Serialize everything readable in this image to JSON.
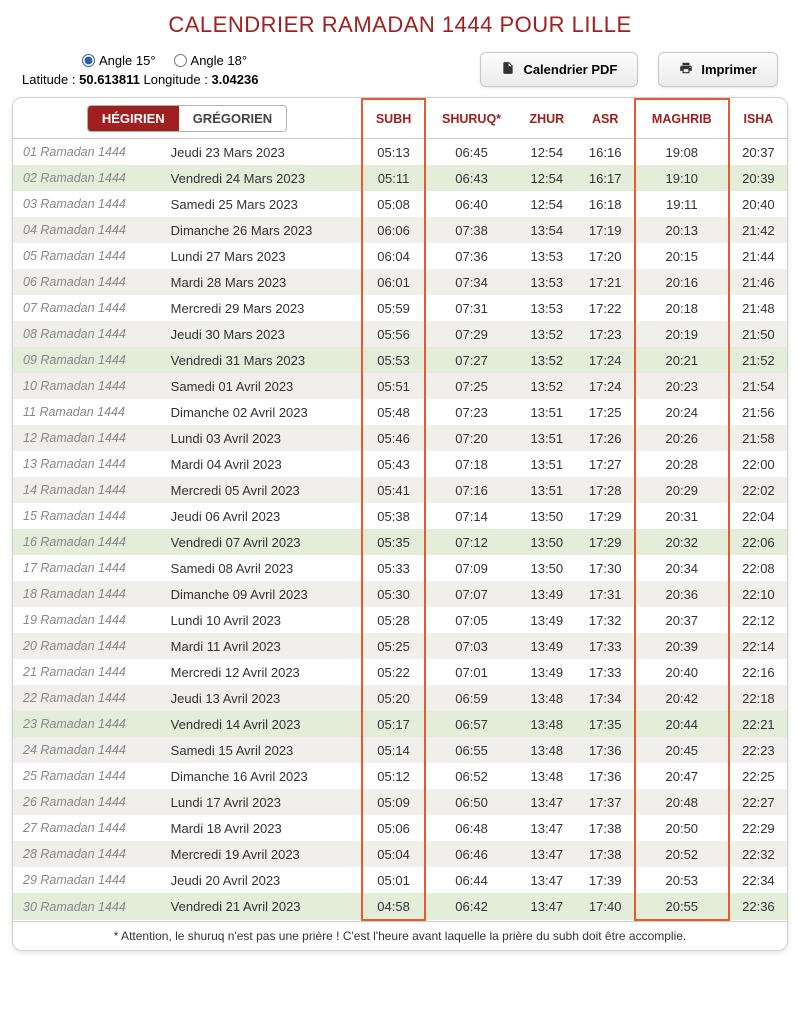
{
  "title": "CALENDRIER RAMADAN 1444 POUR LILLE",
  "angles": {
    "opt15": "Angle 15°",
    "opt18": "Angle 18°",
    "selected": "15"
  },
  "coords": {
    "lat_label": "Latitude :",
    "lat_value": "50.613811",
    "lon_label": "Longitude :",
    "lon_value": "3.04236"
  },
  "buttons": {
    "pdf": "Calendrier PDF",
    "print": "Imprimer"
  },
  "tabs": {
    "hijri": "HÉGIRIEN",
    "greg": "GRÉGORIEN"
  },
  "columns": {
    "subh": "SUBH",
    "shuruq": "SHURUQ*",
    "zhur": "ZHUR",
    "asr": "ASR",
    "maghrib": "MAGHRIB",
    "isha": "ISHA"
  },
  "highlighted_columns": [
    "subh",
    "maghrib"
  ],
  "colors": {
    "accent": "#a02020",
    "highlight_border": "#e85a2a",
    "row_even": "#f0efec",
    "row_friday": "#e4ecda",
    "row_odd": "#ffffff"
  },
  "footnote": "* Attention, le shuruq n'est pas une prière ! C'est l'heure avant laquelle la prière du subh doit être accomplie.",
  "rows": [
    {
      "hijri": "01 Ramadan 1444",
      "greg": "Jeudi 23 Mars 2023",
      "subh": "05:13",
      "shuruq": "06:45",
      "zhur": "12:54",
      "asr": "16:16",
      "maghrib": "19:08",
      "isha": "20:37",
      "friday": false
    },
    {
      "hijri": "02 Ramadan 1444",
      "greg": "Vendredi 24 Mars 2023",
      "subh": "05:11",
      "shuruq": "06:43",
      "zhur": "12:54",
      "asr": "16:17",
      "maghrib": "19:10",
      "isha": "20:39",
      "friday": true
    },
    {
      "hijri": "03 Ramadan 1444",
      "greg": "Samedi 25 Mars 2023",
      "subh": "05:08",
      "shuruq": "06:40",
      "zhur": "12:54",
      "asr": "16:18",
      "maghrib": "19:11",
      "isha": "20:40",
      "friday": false
    },
    {
      "hijri": "04 Ramadan 1444",
      "greg": "Dimanche 26 Mars 2023",
      "subh": "06:06",
      "shuruq": "07:38",
      "zhur": "13:54",
      "asr": "17:19",
      "maghrib": "20:13",
      "isha": "21:42",
      "friday": false
    },
    {
      "hijri": "05 Ramadan 1444",
      "greg": "Lundi 27 Mars 2023",
      "subh": "06:04",
      "shuruq": "07:36",
      "zhur": "13:53",
      "asr": "17:20",
      "maghrib": "20:15",
      "isha": "21:44",
      "friday": false
    },
    {
      "hijri": "06 Ramadan 1444",
      "greg": "Mardi 28 Mars 2023",
      "subh": "06:01",
      "shuruq": "07:34",
      "zhur": "13:53",
      "asr": "17:21",
      "maghrib": "20:16",
      "isha": "21:46",
      "friday": false
    },
    {
      "hijri": "07 Ramadan 1444",
      "greg": "Mercredi 29 Mars 2023",
      "subh": "05:59",
      "shuruq": "07:31",
      "zhur": "13:53",
      "asr": "17:22",
      "maghrib": "20:18",
      "isha": "21:48",
      "friday": false
    },
    {
      "hijri": "08 Ramadan 1444",
      "greg": "Jeudi 30 Mars 2023",
      "subh": "05:56",
      "shuruq": "07:29",
      "zhur": "13:52",
      "asr": "17:23",
      "maghrib": "20:19",
      "isha": "21:50",
      "friday": false
    },
    {
      "hijri": "09 Ramadan 1444",
      "greg": "Vendredi 31 Mars 2023",
      "subh": "05:53",
      "shuruq": "07:27",
      "zhur": "13:52",
      "asr": "17:24",
      "maghrib": "20:21",
      "isha": "21:52",
      "friday": true
    },
    {
      "hijri": "10 Ramadan 1444",
      "greg": "Samedi 01 Avril 2023",
      "subh": "05:51",
      "shuruq": "07:25",
      "zhur": "13:52",
      "asr": "17:24",
      "maghrib": "20:23",
      "isha": "21:54",
      "friday": false
    },
    {
      "hijri": "11 Ramadan 1444",
      "greg": "Dimanche 02 Avril 2023",
      "subh": "05:48",
      "shuruq": "07:23",
      "zhur": "13:51",
      "asr": "17:25",
      "maghrib": "20:24",
      "isha": "21:56",
      "friday": false
    },
    {
      "hijri": "12 Ramadan 1444",
      "greg": "Lundi 03 Avril 2023",
      "subh": "05:46",
      "shuruq": "07:20",
      "zhur": "13:51",
      "asr": "17:26",
      "maghrib": "20:26",
      "isha": "21:58",
      "friday": false
    },
    {
      "hijri": "13 Ramadan 1444",
      "greg": "Mardi 04 Avril 2023",
      "subh": "05:43",
      "shuruq": "07:18",
      "zhur": "13:51",
      "asr": "17:27",
      "maghrib": "20:28",
      "isha": "22:00",
      "friday": false
    },
    {
      "hijri": "14 Ramadan 1444",
      "greg": "Mercredi 05 Avril 2023",
      "subh": "05:41",
      "shuruq": "07:16",
      "zhur": "13:51",
      "asr": "17:28",
      "maghrib": "20:29",
      "isha": "22:02",
      "friday": false
    },
    {
      "hijri": "15 Ramadan 1444",
      "greg": "Jeudi 06 Avril 2023",
      "subh": "05:38",
      "shuruq": "07:14",
      "zhur": "13:50",
      "asr": "17:29",
      "maghrib": "20:31",
      "isha": "22:04",
      "friday": false
    },
    {
      "hijri": "16 Ramadan 1444",
      "greg": "Vendredi 07 Avril 2023",
      "subh": "05:35",
      "shuruq": "07:12",
      "zhur": "13:50",
      "asr": "17:29",
      "maghrib": "20:32",
      "isha": "22:06",
      "friday": true
    },
    {
      "hijri": "17 Ramadan 1444",
      "greg": "Samedi 08 Avril 2023",
      "subh": "05:33",
      "shuruq": "07:09",
      "zhur": "13:50",
      "asr": "17:30",
      "maghrib": "20:34",
      "isha": "22:08",
      "friday": false
    },
    {
      "hijri": "18 Ramadan 1444",
      "greg": "Dimanche 09 Avril 2023",
      "subh": "05:30",
      "shuruq": "07:07",
      "zhur": "13:49",
      "asr": "17:31",
      "maghrib": "20:36",
      "isha": "22:10",
      "friday": false
    },
    {
      "hijri": "19 Ramadan 1444",
      "greg": "Lundi 10 Avril 2023",
      "subh": "05:28",
      "shuruq": "07:05",
      "zhur": "13:49",
      "asr": "17:32",
      "maghrib": "20:37",
      "isha": "22:12",
      "friday": false
    },
    {
      "hijri": "20 Ramadan 1444",
      "greg": "Mardi 11 Avril 2023",
      "subh": "05:25",
      "shuruq": "07:03",
      "zhur": "13:49",
      "asr": "17:33",
      "maghrib": "20:39",
      "isha": "22:14",
      "friday": false
    },
    {
      "hijri": "21 Ramadan 1444",
      "greg": "Mercredi 12 Avril 2023",
      "subh": "05:22",
      "shuruq": "07:01",
      "zhur": "13:49",
      "asr": "17:33",
      "maghrib": "20:40",
      "isha": "22:16",
      "friday": false
    },
    {
      "hijri": "22 Ramadan 1444",
      "greg": "Jeudi 13 Avril 2023",
      "subh": "05:20",
      "shuruq": "06:59",
      "zhur": "13:48",
      "asr": "17:34",
      "maghrib": "20:42",
      "isha": "22:18",
      "friday": false
    },
    {
      "hijri": "23 Ramadan 1444",
      "greg": "Vendredi 14 Avril 2023",
      "subh": "05:17",
      "shuruq": "06:57",
      "zhur": "13:48",
      "asr": "17:35",
      "maghrib": "20:44",
      "isha": "22:21",
      "friday": true
    },
    {
      "hijri": "24 Ramadan 1444",
      "greg": "Samedi 15 Avril 2023",
      "subh": "05:14",
      "shuruq": "06:55",
      "zhur": "13:48",
      "asr": "17:36",
      "maghrib": "20:45",
      "isha": "22:23",
      "friday": false
    },
    {
      "hijri": "25 Ramadan 1444",
      "greg": "Dimanche 16 Avril 2023",
      "subh": "05:12",
      "shuruq": "06:52",
      "zhur": "13:48",
      "asr": "17:36",
      "maghrib": "20:47",
      "isha": "22:25",
      "friday": false
    },
    {
      "hijri": "26 Ramadan 1444",
      "greg": "Lundi 17 Avril 2023",
      "subh": "05:09",
      "shuruq": "06:50",
      "zhur": "13:47",
      "asr": "17:37",
      "maghrib": "20:48",
      "isha": "22:27",
      "friday": false
    },
    {
      "hijri": "27 Ramadan 1444",
      "greg": "Mardi 18 Avril 2023",
      "subh": "05:06",
      "shuruq": "06:48",
      "zhur": "13:47",
      "asr": "17:38",
      "maghrib": "20:50",
      "isha": "22:29",
      "friday": false
    },
    {
      "hijri": "28 Ramadan 1444",
      "greg": "Mercredi 19 Avril 2023",
      "subh": "05:04",
      "shuruq": "06:46",
      "zhur": "13:47",
      "asr": "17:38",
      "maghrib": "20:52",
      "isha": "22:32",
      "friday": false
    },
    {
      "hijri": "29 Ramadan 1444",
      "greg": "Jeudi 20 Avril 2023",
      "subh": "05:01",
      "shuruq": "06:44",
      "zhur": "13:47",
      "asr": "17:39",
      "maghrib": "20:53",
      "isha": "22:34",
      "friday": false
    },
    {
      "hijri": "30 Ramadan 1444",
      "greg": "Vendredi 21 Avril 2023",
      "subh": "04:58",
      "shuruq": "06:42",
      "zhur": "13:47",
      "asr": "17:40",
      "maghrib": "20:55",
      "isha": "22:36",
      "friday": true
    }
  ]
}
